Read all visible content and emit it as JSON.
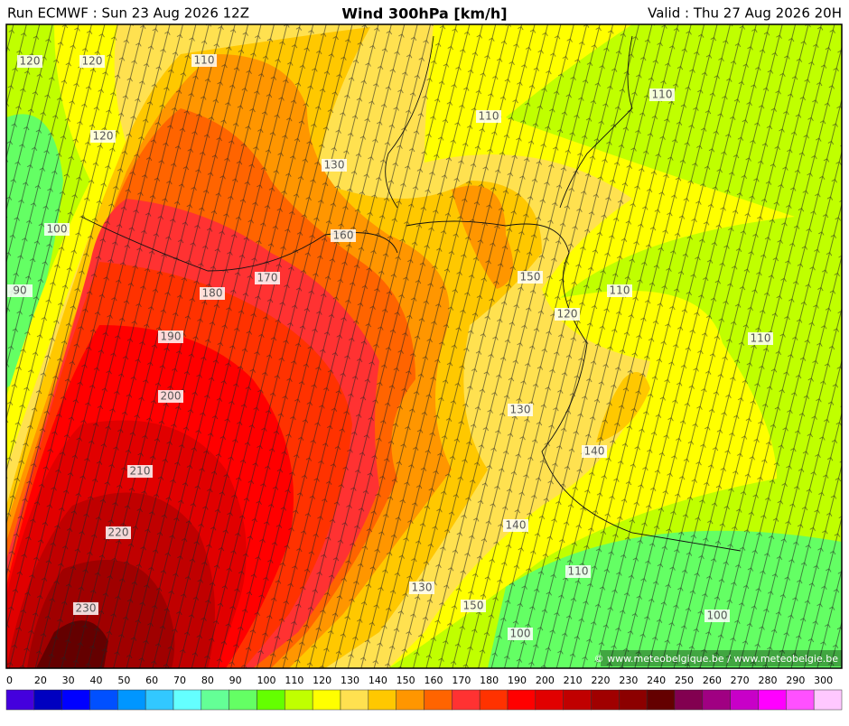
{
  "header": {
    "run": "Run ECMWF : Sun 23 Aug 2026 12Z",
    "title": "Wind 300hPa [km/h]",
    "valid": "Valid : Thu 27 Aug 2026 20H"
  },
  "map": {
    "contour_labels": [
      120,
      120,
      110,
      120,
      110,
      110,
      130,
      100,
      160,
      150,
      170,
      180,
      110,
      90,
      120,
      110,
      190,
      200,
      130,
      140,
      210,
      140,
      220,
      110,
      130,
      150,
      230,
      100,
      100
    ],
    "credit": "© www.meteobelgique.be / www.meteobelgie.be"
  },
  "colorbar": {
    "ticks": [
      0,
      20,
      30,
      40,
      50,
      60,
      70,
      80,
      90,
      100,
      110,
      120,
      130,
      140,
      150,
      160,
      170,
      180,
      190,
      200,
      210,
      220,
      230,
      240,
      250,
      260,
      270,
      280,
      290,
      300
    ],
    "colors": [
      "#4400dd",
      "#0000c0",
      "#0000ff",
      "#0050ff",
      "#0096ff",
      "#32c8ff",
      "#64ffff",
      "#64ff96",
      "#64ff64",
      "#64ff00",
      "#c0ff00",
      "#ffff00",
      "#ffe150",
      "#ffc800",
      "#ff9600",
      "#ff6400",
      "#ff3232",
      "#ff3200",
      "#ff0000",
      "#e10000",
      "#c00000",
      "#a00000",
      "#8c0000",
      "#640000",
      "#820050",
      "#a00082",
      "#c800c8",
      "#ff00ff",
      "#ff50ff",
      "#ffc8ff"
    ]
  }
}
